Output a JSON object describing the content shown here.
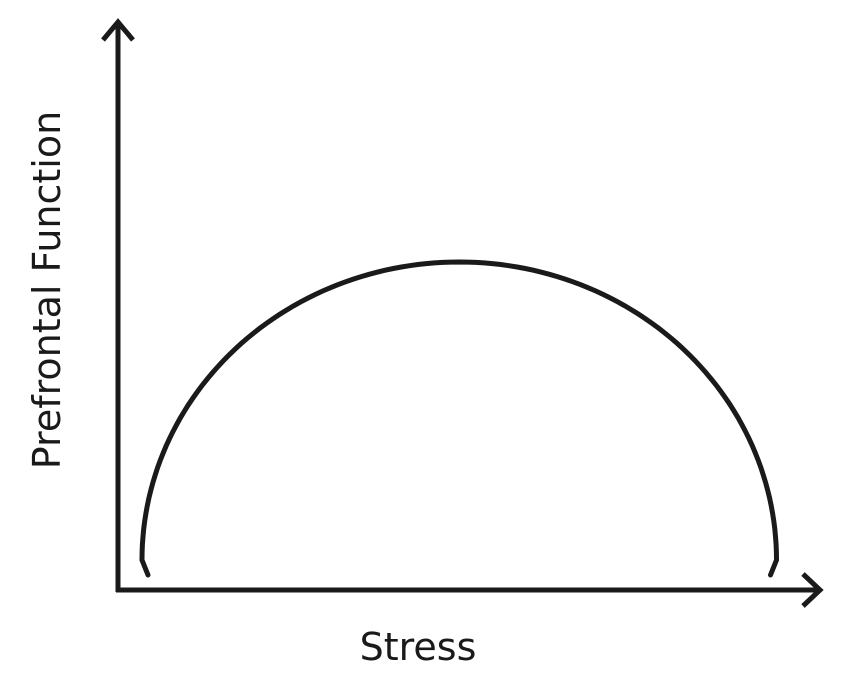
{
  "chart_data": {
    "type": "line",
    "title": "",
    "xlabel": "Stress",
    "ylabel": "Prefrontal Function",
    "ticks": false,
    "grid": false,
    "legend": "none",
    "shape": "inverted-U",
    "xlim": [
      0,
      1
    ],
    "ylim": [
      0,
      1
    ],
    "series": [
      {
        "color": "#1a1a1a",
        "x": [
          0.04,
          0.06,
          0.1,
          0.15,
          0.2,
          0.25,
          0.3,
          0.35,
          0.4,
          0.45,
          0.485,
          0.52,
          0.55,
          0.6,
          0.65,
          0.7,
          0.75,
          0.8,
          0.85,
          0.89,
          0.92,
          0.935
        ],
        "y": [
          0.03,
          0.2,
          0.34,
          0.45,
          0.52,
          0.57,
          0.61,
          0.635,
          0.65,
          0.655,
          0.656,
          0.655,
          0.652,
          0.64,
          0.62,
          0.59,
          0.55,
          0.49,
          0.4,
          0.29,
          0.16,
          0.03
        ]
      }
    ]
  }
}
